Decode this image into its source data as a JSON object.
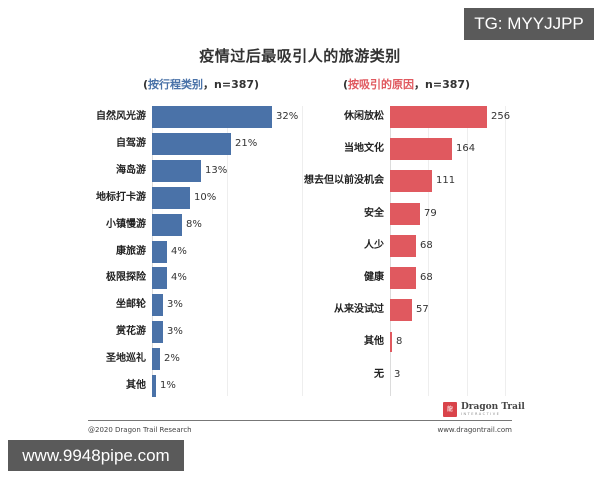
{
  "title": "疫情过后最吸引人的旅游类别",
  "left_panel": {
    "subtitle_open": "(",
    "subtitle_highlight": "按行程类别",
    "subtitle_rest": "，n=387)",
    "color": "#4a72a8",
    "items": [
      {
        "label": "自然风光游",
        "value": "32%"
      },
      {
        "label": "自驾游",
        "value": "21%"
      },
      {
        "label": "海岛游",
        "value": "13%"
      },
      {
        "label": "地标打卡游",
        "value": "10%"
      },
      {
        "label": "小镇慢游",
        "value": "8%"
      },
      {
        "label": "康旅游",
        "value": "4%"
      },
      {
        "label": "极限探险",
        "value": "4%"
      },
      {
        "label": "坐邮轮",
        "value": "3%"
      },
      {
        "label": "赏花游",
        "value": "3%"
      },
      {
        "label": "圣地巡礼",
        "value": "2%"
      },
      {
        "label": "其他",
        "value": "1%"
      }
    ]
  },
  "right_panel": {
    "subtitle_open": "(",
    "subtitle_highlight": "按吸引的原因",
    "subtitle_rest": "，n=387)",
    "color": "#e0595f",
    "items": [
      {
        "label": "休闲放松",
        "value": "256"
      },
      {
        "label": "当地文化",
        "value": "164"
      },
      {
        "label": "想去但以前没机会",
        "value": "111"
      },
      {
        "label": "安全",
        "value": "79"
      },
      {
        "label": "人少",
        "value": "68"
      },
      {
        "label": "健康",
        "value": "68"
      },
      {
        "label": "从来没试过",
        "value": "57"
      },
      {
        "label": "其他",
        "value": "8"
      },
      {
        "label": "无",
        "value": "3"
      }
    ]
  },
  "footer": {
    "copyright": "@2020 Dragon Trail Research",
    "website": "www.dragontrail.com",
    "logo_name": "Dragon Trail",
    "logo_sub": "INTERACTIVE",
    "logo_mark": "龍"
  },
  "watermarks": {
    "top_right": "TG: MYYJJPP",
    "bottom_left": "www.9948pipe.com"
  },
  "chart_data": [
    {
      "type": "bar",
      "orientation": "horizontal",
      "title": "疫情过后最吸引人的旅游类别",
      "subtitle": "(按行程类别，n=387)",
      "categories": [
        "自然风光游",
        "自驾游",
        "海岛游",
        "地标打卡游",
        "小镇慢游",
        "康旅游",
        "极限探险",
        "坐邮轮",
        "赏花游",
        "圣地巡礼",
        "其他"
      ],
      "values": [
        32,
        21,
        13,
        10,
        8,
        4,
        4,
        3,
        3,
        2,
        1
      ],
      "unit": "%",
      "color": "#4a72a8",
      "xlabel": "",
      "ylabel": "",
      "grid": true
    },
    {
      "type": "bar",
      "orientation": "horizontal",
      "title": "疫情过后最吸引人的旅游类别",
      "subtitle": "(按吸引的原因，n=387)",
      "categories": [
        "休闲放松",
        "当地文化",
        "想去但以前没机会",
        "安全",
        "人少",
        "健康",
        "从来没试过",
        "其他",
        "无"
      ],
      "values": [
        256,
        164,
        111,
        79,
        68,
        68,
        57,
        8,
        3
      ],
      "unit": "count",
      "color": "#e0595f",
      "xlabel": "",
      "ylabel": "",
      "grid": true
    }
  ]
}
